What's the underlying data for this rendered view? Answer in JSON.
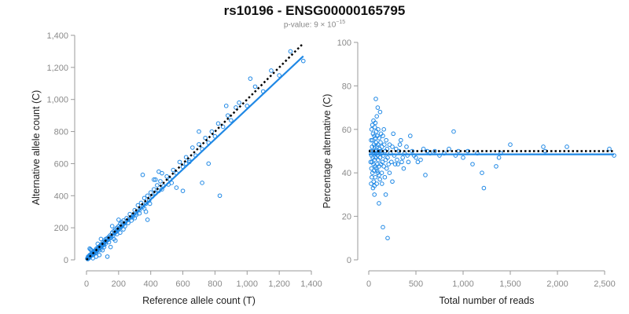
{
  "title": "rs10196 - ENSG00000165795",
  "subtitle_prefix": "p-value: 9 × 10",
  "subtitle_exponent": "−15",
  "colors": {
    "points": "#1f88e5",
    "fit": "#1f88e5",
    "reference": "#000000"
  },
  "chart_data": [
    {
      "type": "scatter",
      "title": "",
      "xlabel": "Reference allele count (T)",
      "ylabel": "Alternative allele count (C)",
      "xlim": [
        0,
        1400
      ],
      "ylim": [
        0,
        1400
      ],
      "xticks": [
        0,
        200,
        400,
        600,
        800,
        1000,
        1200,
        1400
      ],
      "yticks": [
        0,
        200,
        400,
        600,
        800,
        1000,
        1200,
        1400
      ],
      "xtick_labels": [
        "0",
        "200",
        "400",
        "600",
        "800",
        "1,000",
        "1,200",
        "1,400"
      ],
      "ytick_labels": [
        "0",
        "200",
        "400",
        "600",
        "800",
        "1,000",
        "1,200",
        "1,400"
      ],
      "fit_line": {
        "x": [
          0,
          1350
        ],
        "y": [
          0,
          1270
        ]
      },
      "reference_line": {
        "x": [
          0,
          1350
        ],
        "y": [
          0,
          1350
        ],
        "style": "dotted"
      },
      "points": [
        [
          5,
          8
        ],
        [
          8,
          5
        ],
        [
          10,
          20
        ],
        [
          12,
          15
        ],
        [
          15,
          10
        ],
        [
          18,
          25
        ],
        [
          20,
          30
        ],
        [
          22,
          18
        ],
        [
          25,
          22
        ],
        [
          28,
          35
        ],
        [
          30,
          28
        ],
        [
          32,
          40
        ],
        [
          35,
          32
        ],
        [
          38,
          45
        ],
        [
          40,
          38
        ],
        [
          42,
          30
        ],
        [
          45,
          50
        ],
        [
          48,
          42
        ],
        [
          50,
          55
        ],
        [
          52,
          48
        ],
        [
          55,
          60
        ],
        [
          58,
          52
        ],
        [
          60,
          45
        ],
        [
          62,
          70
        ],
        [
          65,
          58
        ],
        [
          68,
          62
        ],
        [
          70,
          75
        ],
        [
          72,
          66
        ],
        [
          75,
          80
        ],
        [
          78,
          70
        ],
        [
          80,
          60
        ],
        [
          82,
          85
        ],
        [
          85,
          78
        ],
        [
          88,
          90
        ],
        [
          90,
          82
        ],
        [
          92,
          70
        ],
        [
          95,
          98
        ],
        [
          98,
          88
        ],
        [
          100,
          95
        ],
        [
          102,
          110
        ],
        [
          105,
          100
        ],
        [
          108,
          92
        ],
        [
          110,
          105
        ],
        [
          112,
          120
        ],
        [
          115,
          110
        ],
        [
          118,
          100
        ],
        [
          120,
          130
        ],
        [
          125,
          118
        ],
        [
          130,
          135
        ],
        [
          135,
          125
        ],
        [
          140,
          145
        ],
        [
          145,
          135
        ],
        [
          150,
          155
        ],
        [
          155,
          140
        ],
        [
          160,
          170
        ],
        [
          165,
          150
        ],
        [
          170,
          180
        ],
        [
          175,
          165
        ],
        [
          180,
          190
        ],
        [
          185,
          175
        ],
        [
          190,
          200
        ],
        [
          195,
          185
        ],
        [
          200,
          210
        ],
        [
          205,
          195
        ],
        [
          210,
          225
        ],
        [
          215,
          205
        ],
        [
          220,
          235
        ],
        [
          225,
          215
        ],
        [
          230,
          245
        ],
        [
          240,
          230
        ],
        [
          250,
          260
        ],
        [
          260,
          250
        ],
        [
          270,
          285
        ],
        [
          280,
          265
        ],
        [
          300,
          310
        ],
        [
          310,
          290
        ],
        [
          320,
          340
        ],
        [
          330,
          310
        ],
        [
          340,
          355
        ],
        [
          350,
          330
        ],
        [
          360,
          385
        ],
        [
          370,
          350
        ],
        [
          380,
          400
        ],
        [
          390,
          370
        ],
        [
          400,
          420
        ],
        [
          410,
          395
        ],
        [
          420,
          440
        ],
        [
          430,
          415
        ],
        [
          440,
          465
        ],
        [
          450,
          430
        ],
        [
          460,
          490
        ],
        [
          480,
          460
        ],
        [
          500,
          520
        ],
        [
          520,
          500
        ],
        [
          540,
          560
        ],
        [
          560,
          540
        ],
        [
          580,
          610
        ],
        [
          600,
          580
        ],
        [
          620,
          640
        ],
        [
          640,
          620
        ],
        [
          660,
          700
        ],
        [
          680,
          650
        ],
        [
          700,
          720
        ],
        [
          720,
          690
        ],
        [
          740,
          760
        ],
        [
          760,
          730
        ],
        [
          780,
          800
        ],
        [
          800,
          770
        ],
        [
          820,
          850
        ],
        [
          850,
          830
        ],
        [
          880,
          900
        ],
        [
          900,
          870
        ],
        [
          950,
          980
        ],
        [
          1000,
          960
        ],
        [
          1050,
          1080
        ],
        [
          1100,
          1050
        ],
        [
          1150,
          1180
        ],
        [
          1200,
          1150
        ],
        [
          1270,
          1300
        ],
        [
          1350,
          1240
        ],
        [
          20,
          70
        ],
        [
          25,
          65
        ],
        [
          30,
          60
        ],
        [
          80,
          30
        ],
        [
          100,
          60
        ],
        [
          130,
          20
        ],
        [
          150,
          80
        ],
        [
          180,
          120
        ],
        [
          200,
          250
        ],
        [
          300,
          260
        ],
        [
          350,
          530
        ],
        [
          420,
          500
        ],
        [
          450,
          550
        ],
        [
          430,
          500
        ],
        [
          470,
          540
        ],
        [
          380,
          250
        ],
        [
          560,
          450
        ],
        [
          620,
          600
        ],
        [
          700,
          800
        ],
        [
          720,
          480
        ],
        [
          760,
          600
        ],
        [
          830,
          400
        ],
        [
          870,
          960
        ],
        [
          930,
          950
        ],
        [
          1020,
          1130
        ],
        [
          640,
          610
        ],
        [
          600,
          430
        ],
        [
          530,
          480
        ],
        [
          510,
          470
        ],
        [
          470,
          440
        ],
        [
          40,
          10
        ],
        [
          60,
          20
        ],
        [
          70,
          100
        ],
        [
          90,
          130
        ],
        [
          110,
          80
        ],
        [
          140,
          110
        ],
        [
          160,
          210
        ],
        [
          170,
          130
        ],
        [
          190,
          160
        ],
        [
          210,
          170
        ],
        [
          230,
          190
        ],
        [
          240,
          210
        ],
        [
          260,
          230
        ],
        [
          280,
          245
        ],
        [
          290,
          270
        ],
        [
          310,
          280
        ],
        [
          330,
          290
        ],
        [
          360,
          320
        ],
        [
          370,
          300
        ],
        [
          395,
          350
        ]
      ]
    },
    {
      "type": "scatter",
      "title": "",
      "xlabel": "Total number of reads",
      "ylabel": "Percentage alternative (C)",
      "xlim": [
        0,
        2500
      ],
      "ylim": [
        0,
        100
      ],
      "xticks": [
        0,
        500,
        1000,
        1500,
        2000,
        2500
      ],
      "yticks": [
        0,
        20,
        40,
        60,
        80,
        100
      ],
      "xtick_labels": [
        "0",
        "500",
        "1,000",
        "1,500",
        "2,000",
        "2,500"
      ],
      "ytick_labels": [
        "0",
        "20",
        "40",
        "60",
        "80",
        "100"
      ],
      "fit_line": {
        "x": [
          0,
          2600
        ],
        "y": [
          48.5,
          48.5
        ]
      },
      "reference_line": {
        "x": [
          0,
          2600
        ],
        "y": [
          50,
          50
        ],
        "style": "dotted"
      },
      "points": [
        [
          20,
          45
        ],
        [
          22,
          50
        ],
        [
          25,
          55
        ],
        [
          25,
          35
        ],
        [
          28,
          42
        ],
        [
          30,
          60
        ],
        [
          30,
          48
        ],
        [
          32,
          38
        ],
        [
          35,
          52
        ],
        [
          35,
          45
        ],
        [
          38,
          62
        ],
        [
          40,
          40
        ],
        [
          40,
          55
        ],
        [
          42,
          47
        ],
        [
          45,
          33
        ],
        [
          45,
          58
        ],
        [
          48,
          50
        ],
        [
          50,
          44
        ],
        [
          50,
          64
        ],
        [
          52,
          36
        ],
        [
          55,
          53
        ],
        [
          55,
          41
        ],
        [
          58,
          57
        ],
        [
          60,
          49
        ],
        [
          60,
          34
        ],
        [
          62,
          46
        ],
        [
          65,
          61
        ],
        [
          65,
          52
        ],
        [
          68,
          43
        ],
        [
          70,
          56
        ],
        [
          70,
          38
        ],
        [
          72,
          50
        ],
        [
          75,
          74
        ],
        [
          75,
          47
        ],
        [
          78,
          54
        ],
        [
          80,
          42
        ],
        [
          80,
          59
        ],
        [
          82,
          49
        ],
        [
          85,
          35
        ],
        [
          85,
          66
        ],
        [
          88,
          52
        ],
        [
          90,
          44
        ],
        [
          90,
          57
        ],
        [
          92,
          48
        ],
        [
          95,
          70
        ],
        [
          95,
          40
        ],
        [
          98,
          53
        ],
        [
          100,
          46
        ],
        [
          100,
          60
        ],
        [
          105,
          50
        ],
        [
          108,
          26
        ],
        [
          110,
          56
        ],
        [
          110,
          43
        ],
        [
          115,
          51
        ],
        [
          118,
          37
        ],
        [
          120,
          68
        ],
        [
          120,
          47
        ],
        [
          125,
          54
        ],
        [
          128,
          44
        ],
        [
          130,
          58
        ],
        [
          135,
          49
        ],
        [
          138,
          40
        ],
        [
          140,
          52
        ],
        [
          145,
          45
        ],
        [
          150,
          57
        ],
        [
          150,
          15
        ],
        [
          155,
          48
        ],
        [
          160,
          43
        ],
        [
          165,
          53
        ],
        [
          170,
          38
        ],
        [
          175,
          50
        ],
        [
          180,
          46
        ],
        [
          185,
          55
        ],
        [
          190,
          42
        ],
        [
          195,
          51
        ],
        [
          200,
          10
        ],
        [
          200,
          47
        ],
        [
          210,
          44
        ],
        [
          220,
          53
        ],
        [
          230,
          49
        ],
        [
          240,
          45
        ],
        [
          250,
          52
        ],
        [
          260,
          58
        ],
        [
          270,
          48
        ],
        [
          280,
          44
        ],
        [
          290,
          51
        ],
        [
          300,
          46
        ],
        [
          320,
          50
        ],
        [
          340,
          55
        ],
        [
          360,
          47
        ],
        [
          380,
          49
        ],
        [
          400,
          52
        ],
        [
          420,
          45
        ],
        [
          440,
          57
        ],
        [
          460,
          50
        ],
        [
          480,
          48
        ],
        [
          500,
          47
        ],
        [
          520,
          45
        ],
        [
          550,
          46
        ],
        [
          580,
          51
        ],
        [
          600,
          39
        ],
        [
          620,
          50
        ],
        [
          650,
          49
        ],
        [
          700,
          50
        ],
        [
          750,
          48
        ],
        [
          800,
          49
        ],
        [
          850,
          51
        ],
        [
          900,
          59
        ],
        [
          920,
          48
        ],
        [
          950,
          50
        ],
        [
          1000,
          47
        ],
        [
          1050,
          50
        ],
        [
          1100,
          44
        ],
        [
          1150,
          49
        ],
        [
          1200,
          40
        ],
        [
          1220,
          33
        ],
        [
          1350,
          43
        ],
        [
          1380,
          47
        ],
        [
          1400,
          49
        ],
        [
          1500,
          53
        ],
        [
          1850,
          52
        ],
        [
          1870,
          50
        ],
        [
          2100,
          52
        ],
        [
          2550,
          51
        ],
        [
          2600,
          48
        ],
        [
          60,
          30
        ],
        [
          70,
          63
        ],
        [
          90,
          41
        ],
        [
          110,
          39
        ],
        [
          130,
          50
        ],
        [
          140,
          35
        ],
        [
          160,
          60
        ],
        [
          180,
          30
        ],
        [
          220,
          40
        ],
        [
          250,
          36
        ],
        [
          310,
          44
        ],
        [
          330,
          53
        ],
        [
          350,
          45
        ],
        [
          370,
          42
        ],
        [
          410,
          48
        ]
      ]
    }
  ]
}
